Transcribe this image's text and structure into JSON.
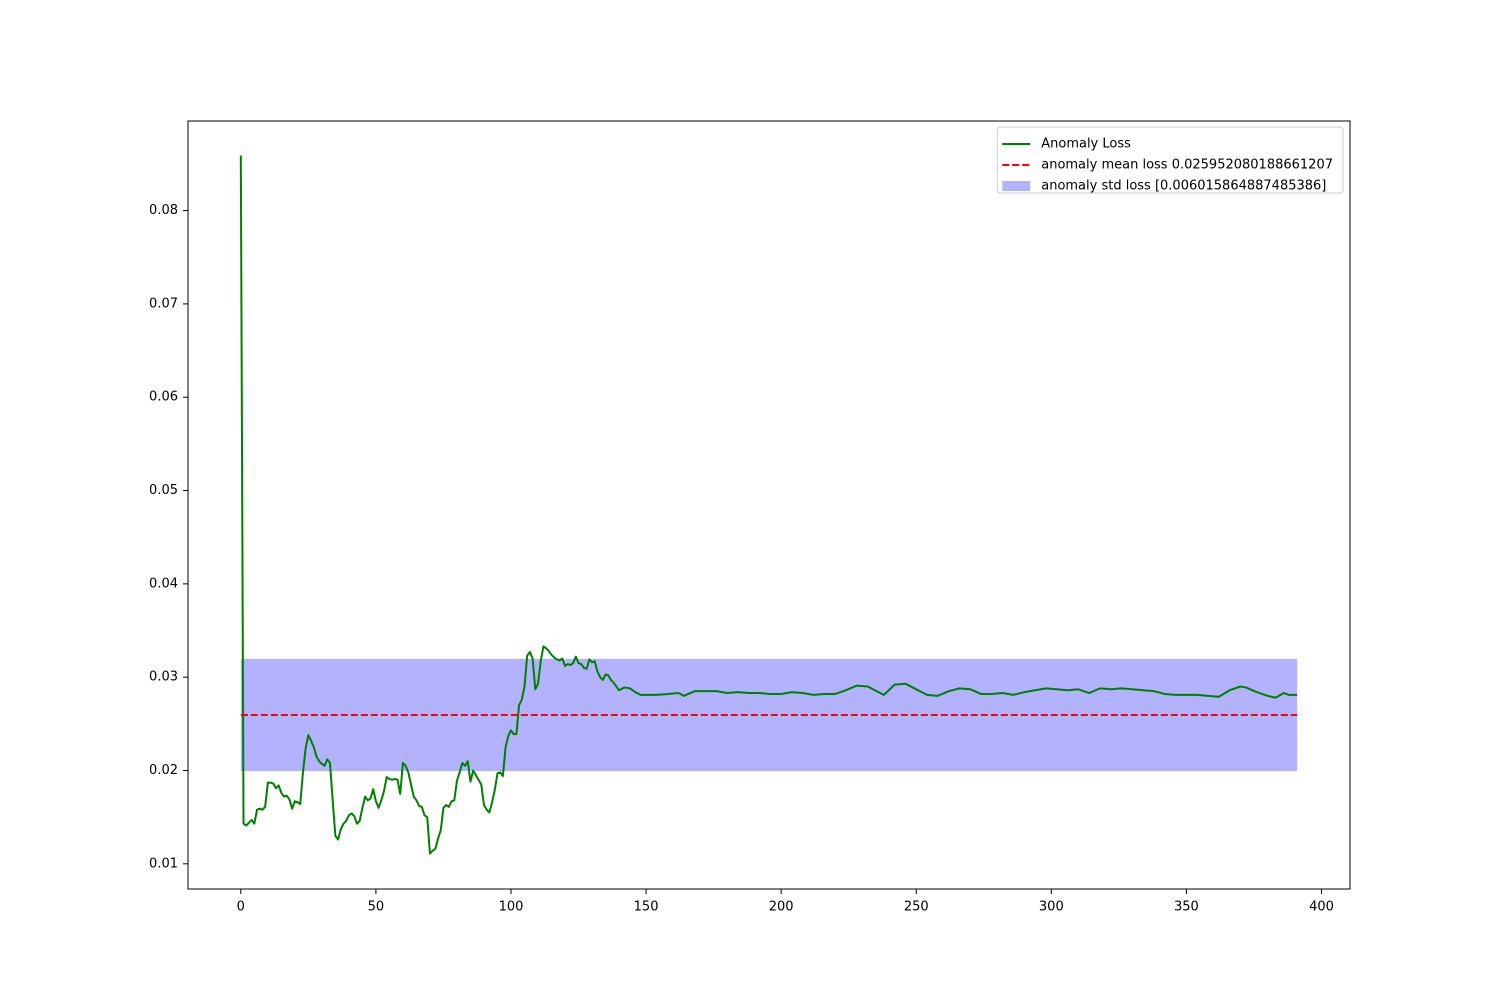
{
  "chart_data": {
    "type": "line",
    "xlim": [
      -19.55,
      410.55
    ],
    "ylim": [
      0.0073,
      0.0896
    ],
    "xticks": [
      0,
      50,
      100,
      150,
      200,
      250,
      300,
      350,
      400
    ],
    "yticks": [
      0.01,
      0.02,
      0.03,
      0.04,
      0.05,
      0.06,
      0.07,
      0.08
    ],
    "grid": false,
    "legend": "upper right",
    "x": [
      0,
      1,
      2,
      3,
      4,
      5,
      6,
      7,
      8,
      9,
      10,
      11,
      12,
      13,
      14,
      15,
      16,
      17,
      18,
      19,
      20,
      21,
      22,
      23,
      24,
      25,
      26,
      27,
      28,
      29,
      30,
      31,
      32,
      33,
      34,
      35,
      36,
      37,
      38,
      39,
      40,
      41,
      42,
      43,
      44,
      45,
      46,
      47,
      48,
      49,
      50,
      51,
      52,
      53,
      54,
      55,
      56,
      57,
      58,
      59,
      60,
      61,
      62,
      63,
      64,
      65,
      66,
      67,
      68,
      69,
      70,
      71,
      72,
      73,
      74,
      75,
      76,
      77,
      78,
      79,
      80,
      81,
      82,
      83,
      84,
      85,
      86,
      87,
      88,
      89,
      90,
      91,
      92,
      93,
      94,
      95,
      96,
      97,
      98,
      99,
      100,
      101,
      102,
      103,
      104,
      105,
      106,
      107,
      108,
      109,
      110,
      111,
      112,
      113,
      114,
      115,
      116,
      117,
      118,
      119,
      120,
      121,
      122,
      123,
      124,
      125,
      126,
      127,
      128,
      129,
      130,
      131,
      132,
      133,
      134,
      135,
      136,
      137,
      138,
      139,
      140,
      142,
      144,
      146,
      148,
      150,
      154,
      158,
      162,
      164,
      168,
      172,
      176,
      180,
      184,
      188,
      192,
      196,
      200,
      204,
      208,
      212,
      216,
      220,
      224,
      228,
      232,
      236,
      238,
      242,
      246,
      250,
      254,
      258,
      262,
      266,
      270,
      274,
      278,
      282,
      286,
      290,
      294,
      298,
      302,
      306,
      310,
      314,
      318,
      322,
      326,
      330,
      334,
      338,
      342,
      346,
      350,
      354,
      358,
      362,
      366,
      370,
      372,
      376,
      380,
      383,
      386,
      388,
      391
    ],
    "series": [
      {
        "name": "Anomaly Loss",
        "color": "#008000",
        "values": [
          0.0859,
          0.0143,
          0.0141,
          0.0144,
          0.0147,
          0.0143,
          0.0158,
          0.0159,
          0.0158,
          0.0161,
          0.0187,
          0.0187,
          0.0186,
          0.0181,
          0.0184,
          0.0176,
          0.0172,
          0.0173,
          0.0169,
          0.0159,
          0.0167,
          0.0166,
          0.0164,
          0.0198,
          0.0224,
          0.0238,
          0.0232,
          0.0225,
          0.0215,
          0.021,
          0.0207,
          0.0205,
          0.0212,
          0.0208,
          0.0168,
          0.013,
          0.0126,
          0.0137,
          0.0143,
          0.0146,
          0.0152,
          0.0154,
          0.0151,
          0.0143,
          0.0146,
          0.016,
          0.0172,
          0.0168,
          0.017,
          0.018,
          0.0167,
          0.016,
          0.0168,
          0.0178,
          0.0193,
          0.0191,
          0.019,
          0.0191,
          0.019,
          0.0175,
          0.0208,
          0.0205,
          0.0198,
          0.0185,
          0.0172,
          0.0168,
          0.0162,
          0.0161,
          0.0152,
          0.015,
          0.0111,
          0.0114,
          0.0116,
          0.0127,
          0.0136,
          0.016,
          0.0163,
          0.0161,
          0.0167,
          0.0168,
          0.0189,
          0.0198,
          0.0208,
          0.0205,
          0.021,
          0.0188,
          0.02,
          0.0195,
          0.019,
          0.0185,
          0.0163,
          0.0158,
          0.0155,
          0.0166,
          0.0179,
          0.0197,
          0.0198,
          0.0194,
          0.0225,
          0.0237,
          0.0243,
          0.0239,
          0.0239,
          0.027,
          0.0276,
          0.029,
          0.0323,
          0.0327,
          0.032,
          0.0287,
          0.0293,
          0.0317,
          0.0333,
          0.0331,
          0.0328,
          0.0324,
          0.0321,
          0.0319,
          0.0318,
          0.032,
          0.0312,
          0.0314,
          0.0313,
          0.0315,
          0.0322,
          0.0315,
          0.0314,
          0.031,
          0.0309,
          0.0319,
          0.0316,
          0.0317,
          0.0306,
          0.03,
          0.0297,
          0.0303,
          0.0302,
          0.0297,
          0.0294,
          0.029,
          0.0286,
          0.0289,
          0.0288,
          0.0284,
          0.0281,
          0.0281,
          0.0281,
          0.0282,
          0.0283,
          0.028,
          0.0285,
          0.0285,
          0.0285,
          0.0283,
          0.0284,
          0.0283,
          0.0283,
          0.0282,
          0.0282,
          0.0284,
          0.0283,
          0.0281,
          0.0282,
          0.0282,
          0.0286,
          0.0291,
          0.029,
          0.0284,
          0.0281,
          0.0292,
          0.0293,
          0.0287,
          0.0281,
          0.028,
          0.0285,
          0.0288,
          0.0287,
          0.0282,
          0.0282,
          0.0283,
          0.0281,
          0.0284,
          0.0286,
          0.0288,
          0.0287,
          0.0286,
          0.0287,
          0.0283,
          0.0288,
          0.0287,
          0.0288,
          0.0287,
          0.0286,
          0.0285,
          0.0282,
          0.0281,
          0.0281,
          0.0281,
          0.028,
          0.0279,
          0.0286,
          0.029,
          0.0289,
          0.0284,
          0.028,
          0.0278,
          0.0283,
          0.0281,
          0.0281
        ]
      }
    ],
    "mean": {
      "name": "anomaly mean loss 0.025952080188661207",
      "color": "#ff0000",
      "value": 0.025952080188661207
    },
    "std_band": {
      "name": "anomaly std loss [0.006015864887485386]",
      "color": "#b2b2ff",
      "value": 0.006015864887485386
    }
  }
}
